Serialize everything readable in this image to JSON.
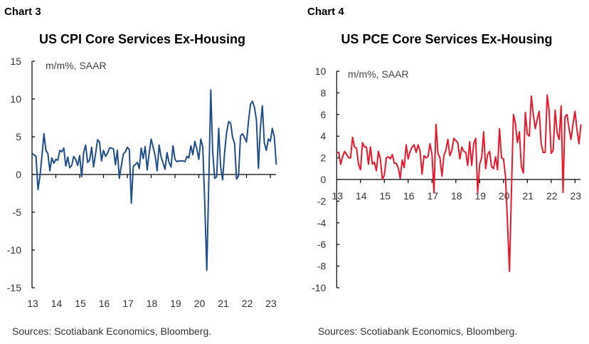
{
  "chart_data": [
    {
      "type": "line",
      "label": "Chart 3",
      "title": "US CPI Core Services Ex-Housing",
      "unit_label": "m/m%, SAAR",
      "source": "Sources: Scotiabank Economics, Bloomberg.",
      "ylim": [
        -15,
        15
      ],
      "y_ticks": [
        15,
        10,
        5,
        0,
        -5,
        -10,
        -15
      ],
      "x_tick_labels": [
        "13",
        "14",
        "15",
        "16",
        "17",
        "18",
        "19",
        "20",
        "21",
        "22",
        "23"
      ],
      "grid": false,
      "color": "#1f4e8c",
      "series": [
        {
          "points": [
            [
              "2013-01",
              2.8
            ],
            [
              "2013-02",
              2.6
            ],
            [
              "2013-03",
              2.4
            ],
            [
              "2013-04",
              -2.0
            ],
            [
              "2013-05",
              -0.2
            ],
            [
              "2013-06",
              2.5
            ],
            [
              "2013-07",
              5.4
            ],
            [
              "2013-08",
              3.2
            ],
            [
              "2013-09",
              2.8
            ],
            [
              "2013-10",
              0.5
            ],
            [
              "2013-11",
              2.2
            ],
            [
              "2013-12",
              1.5
            ],
            [
              "2014-01",
              2.0
            ],
            [
              "2014-02",
              1.9
            ],
            [
              "2014-03",
              3.2
            ],
            [
              "2014-04",
              3.0
            ],
            [
              "2014-05",
              3.5
            ],
            [
              "2014-06",
              1.1
            ],
            [
              "2014-07",
              2.3
            ],
            [
              "2014-08",
              0.9
            ],
            [
              "2014-09",
              1.2
            ],
            [
              "2014-10",
              2.4
            ],
            [
              "2014-11",
              2.0
            ],
            [
              "2014-12",
              1.2
            ],
            [
              "2015-01",
              2.5
            ],
            [
              "2015-02",
              -0.3
            ],
            [
              "2015-03",
              2.9
            ],
            [
              "2015-04",
              3.9
            ],
            [
              "2015-05",
              1.6
            ],
            [
              "2015-06",
              1.9
            ],
            [
              "2015-07",
              3.6
            ],
            [
              "2015-08",
              1.0
            ],
            [
              "2015-09",
              2.7
            ],
            [
              "2015-10",
              4.6
            ],
            [
              "2015-11",
              4.3
            ],
            [
              "2015-12",
              1.8
            ],
            [
              "2016-01",
              3.2
            ],
            [
              "2016-02",
              2.4
            ],
            [
              "2016-03",
              2.8
            ],
            [
              "2016-04",
              3.5
            ],
            [
              "2016-05",
              3.5
            ],
            [
              "2016-06",
              3.4
            ],
            [
              "2016-07",
              1.3
            ],
            [
              "2016-08",
              3.2
            ],
            [
              "2016-09",
              -0.5
            ],
            [
              "2016-10",
              1.2
            ],
            [
              "2016-11",
              2.7
            ],
            [
              "2016-12",
              3.0
            ],
            [
              "2017-01",
              3.6
            ],
            [
              "2017-02",
              3.3
            ],
            [
              "2017-03",
              -3.8
            ],
            [
              "2017-04",
              1.1
            ],
            [
              "2017-05",
              1.3
            ],
            [
              "2017-06",
              1.6
            ],
            [
              "2017-07",
              0.8
            ],
            [
              "2017-08",
              3.5
            ],
            [
              "2017-09",
              2.1
            ],
            [
              "2017-10",
              3.7
            ],
            [
              "2017-11",
              0.6
            ],
            [
              "2017-12",
              2.8
            ],
            [
              "2018-01",
              4.7
            ],
            [
              "2018-02",
              3.6
            ],
            [
              "2018-03",
              2.5
            ],
            [
              "2018-04",
              0.5
            ],
            [
              "2018-05",
              3.9
            ],
            [
              "2018-06",
              2.3
            ],
            [
              "2018-07",
              1.5
            ],
            [
              "2018-08",
              0.7
            ],
            [
              "2018-09",
              2.9
            ],
            [
              "2018-10",
              1.6
            ],
            [
              "2018-11",
              1.0
            ],
            [
              "2018-12",
              3.8
            ],
            [
              "2019-01",
              2.0
            ],
            [
              "2019-02",
              1.7
            ],
            [
              "2019-03",
              1.8
            ],
            [
              "2019-04",
              1.8
            ],
            [
              "2019-05",
              1.8
            ],
            [
              "2019-06",
              1.7
            ],
            [
              "2019-07",
              2.4
            ],
            [
              "2019-08",
              2.2
            ],
            [
              "2019-09",
              3.8
            ],
            [
              "2019-10",
              2.6
            ],
            [
              "2019-11",
              4.4
            ],
            [
              "2019-12",
              3.4
            ],
            [
              "2020-01",
              2.0
            ],
            [
              "2020-02",
              4.7
            ],
            [
              "2020-03",
              3.6
            ],
            [
              "2020-04",
              -4.0
            ],
            [
              "2020-05",
              -12.7
            ],
            [
              "2020-06",
              -1.0
            ],
            [
              "2020-07",
              11.2
            ],
            [
              "2020-08",
              3.0
            ],
            [
              "2020-09",
              -0.5
            ],
            [
              "2020-10",
              -0.3
            ],
            [
              "2020-11",
              6.1
            ],
            [
              "2020-12",
              1.0
            ],
            [
              "2021-01",
              -0.7
            ],
            [
              "2021-02",
              3.0
            ],
            [
              "2021-03",
              5.6
            ],
            [
              "2021-04",
              7.0
            ],
            [
              "2021-05",
              6.8
            ],
            [
              "2021-06",
              4.9
            ],
            [
              "2021-07",
              4.1
            ],
            [
              "2021-08",
              -0.6
            ],
            [
              "2021-09",
              -0.2
            ],
            [
              "2021-10",
              5.1
            ],
            [
              "2021-11",
              5.4
            ],
            [
              "2021-12",
              4.9
            ],
            [
              "2022-01",
              4.3
            ],
            [
              "2022-02",
              7.0
            ],
            [
              "2022-03",
              9.3
            ],
            [
              "2022-04",
              9.7
            ],
            [
              "2022-05",
              8.9
            ],
            [
              "2022-06",
              7.2
            ],
            [
              "2022-07",
              0.8
            ],
            [
              "2022-08",
              6.1
            ],
            [
              "2022-09",
              9.1
            ],
            [
              "2022-10",
              4.2
            ],
            [
              "2022-11",
              3.2
            ],
            [
              "2022-12",
              4.7
            ],
            [
              "2023-01",
              4.4
            ],
            [
              "2023-02",
              6.1
            ],
            [
              "2023-03",
              5.0
            ],
            [
              "2023-04",
              1.3
            ]
          ]
        }
      ]
    },
    {
      "type": "line",
      "label": "Chart 4",
      "title": "US PCE Core Services Ex-Housing",
      "unit_label": "m/m%, SAAR",
      "source": "Sources: Scotiabank Economics, Bloomberg.",
      "ylim": [
        -10,
        10
      ],
      "y_ticks": [
        10,
        8,
        6,
        4,
        2,
        0,
        -2,
        -4,
        -6,
        -8,
        -10
      ],
      "x_tick_labels": [
        "13",
        "14",
        "15",
        "16",
        "17",
        "18",
        "19",
        "20",
        "21",
        "22",
        "23"
      ],
      "grid": false,
      "color": "#e8192c",
      "series": [
        {
          "points": [
            [
              "2013-01",
              2.5
            ],
            [
              "2013-02",
              2.5
            ],
            [
              "2013-03",
              1.4
            ],
            [
              "2013-04",
              2.1
            ],
            [
              "2013-05",
              2.6
            ],
            [
              "2013-06",
              2.3
            ],
            [
              "2013-07",
              2.0
            ],
            [
              "2013-08",
              2.0
            ],
            [
              "2013-09",
              3.9
            ],
            [
              "2013-10",
              3.0
            ],
            [
              "2013-11",
              2.9
            ],
            [
              "2013-12",
              1.4
            ],
            [
              "2014-01",
              0.9
            ],
            [
              "2014-02",
              3.4
            ],
            [
              "2014-03",
              3.0
            ],
            [
              "2014-04",
              3.0
            ],
            [
              "2014-05",
              1.4
            ],
            [
              "2014-06",
              3.0
            ],
            [
              "2014-07",
              1.4
            ],
            [
              "2014-08",
              1.6
            ],
            [
              "2014-09",
              0.8
            ],
            [
              "2014-10",
              2.6
            ],
            [
              "2014-11",
              1.9
            ],
            [
              "2014-12",
              0.0
            ],
            [
              "2015-01",
              0.4
            ],
            [
              "2015-02",
              2.0
            ],
            [
              "2015-03",
              2.1
            ],
            [
              "2015-04",
              1.9
            ],
            [
              "2015-05",
              2.3
            ],
            [
              "2015-06",
              1.5
            ],
            [
              "2015-07",
              1.5
            ],
            [
              "2015-08",
              1.1
            ],
            [
              "2015-09",
              0.1
            ],
            [
              "2015-10",
              1.8
            ],
            [
              "2015-11",
              1.1
            ],
            [
              "2015-12",
              3.2
            ],
            [
              "2016-01",
              1.9
            ],
            [
              "2016-02",
              2.6
            ],
            [
              "2016-03",
              3.0
            ],
            [
              "2016-04",
              3.2
            ],
            [
              "2016-05",
              2.5
            ],
            [
              "2016-06",
              3.2
            ],
            [
              "2016-07",
              2.6
            ],
            [
              "2016-08",
              0.5
            ],
            [
              "2016-09",
              2.2
            ],
            [
              "2016-10",
              2.0
            ],
            [
              "2016-11",
              2.1
            ],
            [
              "2016-12",
              3.3
            ],
            [
              "2017-01",
              2.3
            ],
            [
              "2017-02",
              -1.2
            ],
            [
              "2017-03",
              5.1
            ],
            [
              "2017-04",
              2.4
            ],
            [
              "2017-05",
              2.0
            ],
            [
              "2017-06",
              0.3
            ],
            [
              "2017-07",
              2.2
            ],
            [
              "2017-08",
              2.7
            ],
            [
              "2017-09",
              3.7
            ],
            [
              "2017-10",
              2.2
            ],
            [
              "2017-11",
              2.7
            ],
            [
              "2017-12",
              3.8
            ],
            [
              "2018-01",
              3.6
            ],
            [
              "2018-02",
              3.4
            ],
            [
              "2018-03",
              1.9
            ],
            [
              "2018-04",
              3.0
            ],
            [
              "2018-05",
              2.6
            ],
            [
              "2018-06",
              2.5
            ],
            [
              "2018-07",
              1.3
            ],
            [
              "2018-08",
              3.5
            ],
            [
              "2018-09",
              1.3
            ],
            [
              "2018-10",
              3.3
            ],
            [
              "2018-11",
              3.8
            ],
            [
              "2018-12",
              -1.2
            ],
            [
              "2019-01",
              1.4
            ],
            [
              "2019-02",
              2.0
            ],
            [
              "2019-03",
              4.4
            ],
            [
              "2019-04",
              1.0
            ],
            [
              "2019-05",
              2.3
            ],
            [
              "2019-06",
              2.6
            ],
            [
              "2019-07",
              1.2
            ],
            [
              "2019-08",
              1.0
            ],
            [
              "2019-09",
              2.1
            ],
            [
              "2019-10",
              0.9
            ],
            [
              "2019-11",
              4.7
            ],
            [
              "2019-12",
              2.0
            ],
            [
              "2020-01",
              1.9
            ],
            [
              "2020-02",
              0.3
            ],
            [
              "2020-03",
              -4.0
            ],
            [
              "2020-04",
              -8.5
            ],
            [
              "2020-05",
              -1.0
            ],
            [
              "2020-06",
              6.0
            ],
            [
              "2020-07",
              5.2
            ],
            [
              "2020-08",
              3.4
            ],
            [
              "2020-09",
              4.4
            ],
            [
              "2020-10",
              1.2
            ],
            [
              "2020-11",
              0.6
            ],
            [
              "2020-12",
              6.2
            ],
            [
              "2021-01",
              4.2
            ],
            [
              "2021-02",
              4.0
            ],
            [
              "2021-03",
              7.7
            ],
            [
              "2021-04",
              6.0
            ],
            [
              "2021-05",
              4.7
            ],
            [
              "2021-06",
              5.6
            ],
            [
              "2021-07",
              6.3
            ],
            [
              "2021-08",
              3.3
            ],
            [
              "2021-09",
              2.5
            ],
            [
              "2021-10",
              2.5
            ],
            [
              "2021-11",
              7.8
            ],
            [
              "2021-12",
              6.3
            ],
            [
              "2022-01",
              2.4
            ],
            [
              "2022-02",
              2.7
            ],
            [
              "2022-03",
              6.4
            ],
            [
              "2022-04",
              4.3
            ],
            [
              "2022-05",
              3.7
            ],
            [
              "2022-06",
              6.8
            ],
            [
              "2022-07",
              -1.2
            ],
            [
              "2022-08",
              5.8
            ],
            [
              "2022-09",
              6.0
            ],
            [
              "2022-10",
              4.7
            ],
            [
              "2022-11",
              3.7
            ],
            [
              "2022-12",
              5.1
            ],
            [
              "2023-01",
              6.3
            ],
            [
              "2023-02",
              4.6
            ],
            [
              "2023-03",
              3.3
            ],
            [
              "2023-04",
              5.1
            ]
          ]
        }
      ]
    }
  ]
}
